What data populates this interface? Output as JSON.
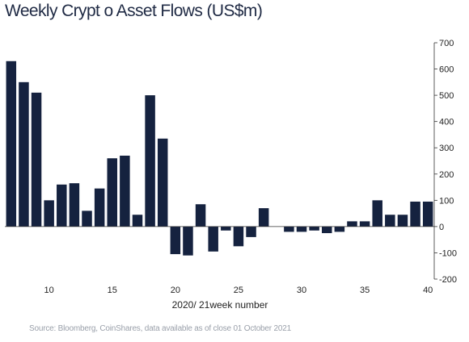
{
  "chart_data": {
    "type": "bar",
    "title": "Weekly Crypt o Asset Flows (US$m)",
    "xlabel": "2020/ 21week number",
    "ylabel": "",
    "ylim": [
      -200,
      700
    ],
    "yticks": [
      -200,
      -100,
      0,
      100,
      200,
      300,
      400,
      500,
      600,
      700
    ],
    "xtick_labels": [
      "10",
      "15",
      "20",
      "25",
      "30",
      "35",
      "40"
    ],
    "x": [
      7,
      8,
      9,
      10,
      11,
      12,
      13,
      14,
      15,
      16,
      17,
      18,
      19,
      20,
      21,
      22,
      23,
      24,
      25,
      26,
      27,
      28,
      29,
      30,
      31,
      32,
      33,
      34,
      35,
      36,
      37,
      38,
      39,
      40
    ],
    "values": [
      630,
      550,
      510,
      100,
      160,
      165,
      60,
      145,
      260,
      270,
      45,
      500,
      335,
      -105,
      -110,
      85,
      -95,
      -15,
      -75,
      -40,
      70,
      0,
      -20,
      -20,
      -15,
      -25,
      -20,
      20,
      20,
      100,
      45,
      45,
      95,
      95
    ],
    "bar_color": "#15223f",
    "grid": false
  },
  "source": "Source: Bloomberg, CoinShares, data available as of close 01 October 2021"
}
